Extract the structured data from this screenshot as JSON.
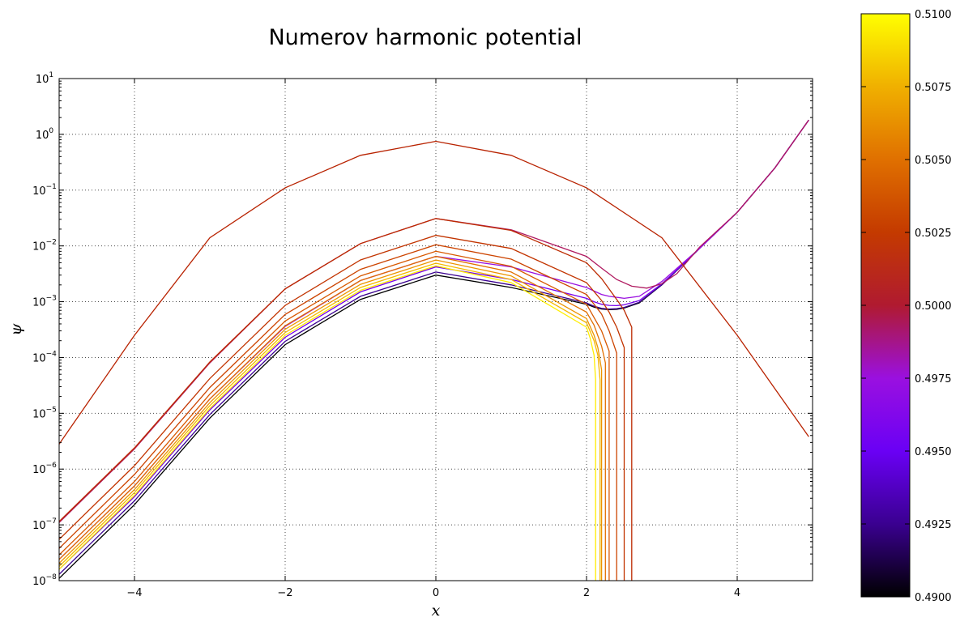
{
  "chart_data": {
    "type": "line",
    "title": "Numerov harmonic potential",
    "xlabel": "x",
    "ylabel": "ψ",
    "xlim": [
      -5,
      5
    ],
    "ylim": [
      1e-08,
      10
    ],
    "yscale": "log",
    "grid": true,
    "x_ticks": [
      -4,
      -2,
      0,
      2,
      4
    ],
    "x_tick_labels": [
      "−4",
      "−2",
      "0",
      "2",
      "4"
    ],
    "y_ticks": [
      {
        "base": "10",
        "exp": "−8"
      },
      {
        "base": "10",
        "exp": "−7"
      },
      {
        "base": "10",
        "exp": "−6"
      },
      {
        "base": "10",
        "exp": "−5"
      },
      {
        "base": "10",
        "exp": "−4"
      },
      {
        "base": "10",
        "exp": "−3"
      },
      {
        "base": "10",
        "exp": "−2"
      },
      {
        "base": "10",
        "exp": "−1"
      },
      {
        "base": "10",
        "exp": "0"
      },
      {
        "base": "10",
        "exp": "1"
      }
    ],
    "colorbar": {
      "range": [
        0.49,
        0.51
      ],
      "ticks": [
        "0.4900",
        "0.4925",
        "0.4950",
        "0.4975",
        "0.5000",
        "0.5025",
        "0.5050",
        "0.5075",
        "0.5100"
      ],
      "colormap": [
        "#000000",
        "#3a0090",
        "#7700ee",
        "#9a10e0",
        "#b01a30",
        "#c43a00",
        "#e07000",
        "#f0b000",
        "#ffff00"
      ]
    },
    "series": [
      {
        "energy": 0.49,
        "color": "#000000",
        "x": [
          -5,
          -4,
          -3,
          -2,
          -1,
          0,
          1,
          2,
          2.1,
          2.2,
          2.3,
          2.4,
          2.5,
          2.7,
          3,
          3.5,
          4,
          4.5,
          4.95
        ],
        "y": [
          1.1e-08,
          2.3e-07,
          8.2e-06,
          0.00017,
          0.0011,
          0.003,
          0.0018,
          0.0009,
          0.0008,
          0.00074,
          0.00072,
          0.00073,
          0.00077,
          0.00095,
          0.002,
          0.009,
          0.04,
          0.25,
          1.8
        ]
      },
      {
        "energy": 0.4925,
        "color": "#3a0090",
        "x": [
          -5,
          -4,
          -3,
          -2,
          -1,
          0,
          1,
          2,
          2.1,
          2.2,
          2.3,
          2.4,
          2.5,
          2.7,
          3,
          3.5,
          4,
          4.5,
          4.95
        ],
        "y": [
          1.3e-08,
          2.7e-07,
          9.5e-06,
          0.000195,
          0.00125,
          0.0034,
          0.002,
          0.00095,
          0.00083,
          0.00076,
          0.00074,
          0.00075,
          0.00079,
          0.00098,
          0.002,
          0.009,
          0.04,
          0.25,
          1.8
        ]
      },
      {
        "energy": 0.495,
        "color": "#7700ee",
        "x": [
          -5,
          -4,
          -3,
          -2,
          -1,
          0,
          1,
          2,
          2.1,
          2.2,
          2.3,
          2.4,
          2.5,
          2.7,
          3,
          3.5,
          4,
          4.5,
          4.95
        ],
        "y": [
          1.6e-08,
          3.2e-07,
          1.15e-05,
          0.00023,
          0.0015,
          0.0042,
          0.0025,
          0.00115,
          0.001,
          0.0009,
          0.00086,
          0.00085,
          0.00088,
          0.00105,
          0.0021,
          0.009,
          0.04,
          0.25,
          1.8
        ]
      },
      {
        "energy": 0.4975,
        "color": "#9a10e0",
        "x": [
          -5,
          -4,
          -3,
          -2,
          -1,
          0,
          1,
          2,
          2.1,
          2.2,
          2.3,
          2.4,
          2.5,
          2.7,
          3,
          3.5,
          4,
          4.5,
          4.95
        ],
        "y": [
          2.4e-08,
          5e-07,
          1.8e-05,
          0.00036,
          0.0024,
          0.0065,
          0.0042,
          0.0018,
          0.00155,
          0.00135,
          0.00125,
          0.0012,
          0.00115,
          0.00125,
          0.0023,
          0.009,
          0.04,
          0.25,
          1.8
        ]
      },
      {
        "energy": 0.4999,
        "color": "#b01a60",
        "x": [
          -5,
          -4,
          -3,
          -2,
          -1,
          0,
          1,
          2,
          2.2,
          2.4,
          2.6,
          2.8,
          3,
          3.2,
          3.5,
          4,
          4.5,
          4.95
        ],
        "y": [
          1.1e-07,
          2.3e-06,
          8e-05,
          0.0017,
          0.011,
          0.031,
          0.0195,
          0.0065,
          0.004,
          0.0025,
          0.0019,
          0.00175,
          0.0021,
          0.0032,
          0.0095,
          0.04,
          0.25,
          1.8
        ]
      },
      {
        "energy": 0.5,
        "color": "#b82200",
        "x": [
          -5,
          -4,
          -3,
          -2,
          -1,
          0,
          1,
          2,
          3,
          4,
          4.95
        ],
        "y": [
          2.8e-06,
          0.00025,
          0.014,
          0.11,
          0.42,
          0.75,
          0.42,
          0.11,
          0.014,
          0.00025,
          3.8e-06
        ]
      },
      {
        "energy": 0.5001,
        "color": "#bc2a00",
        "x": [
          -5,
          -4,
          -3,
          -2,
          -1,
          0,
          1,
          2,
          2.2,
          2.4,
          2.5,
          2.6,
          2.6
        ],
        "y": [
          1.15e-07,
          2.4e-06,
          8.3e-05,
          0.0017,
          0.011,
          0.031,
          0.019,
          0.005,
          0.0026,
          0.0011,
          0.0007,
          0.00035,
          1e-08
        ]
      },
      {
        "energy": 0.5015,
        "color": "#c23400",
        "x": [
          -5,
          -4,
          -3,
          -2,
          -1,
          0,
          1,
          2,
          2.2,
          2.3,
          2.4,
          2.5,
          2.5
        ],
        "y": [
          5.5e-08,
          1.15e-06,
          4.2e-05,
          0.00086,
          0.0056,
          0.0155,
          0.009,
          0.0022,
          0.00105,
          0.00065,
          0.00035,
          0.00015,
          1e-08
        ]
      },
      {
        "energy": 0.503,
        "color": "#cc4400",
        "x": [
          -5,
          -4,
          -3,
          -2,
          -1,
          0,
          1,
          2,
          2.2,
          2.3,
          2.4,
          2.4
        ],
        "y": [
          3.8e-08,
          8e-07,
          2.9e-05,
          0.00059,
          0.0038,
          0.0105,
          0.0058,
          0.00135,
          0.0006,
          0.0003,
          0.00012,
          1e-08
        ]
      },
      {
        "energy": 0.5045,
        "color": "#d85800",
        "x": [
          -5,
          -4,
          -3,
          -2,
          -1,
          0,
          1,
          2,
          2.2,
          2.3,
          2.3
        ],
        "y": [
          2.9e-08,
          6e-07,
          2.2e-05,
          0.00045,
          0.0029,
          0.008,
          0.0043,
          0.0009,
          0.0003,
          0.00013,
          1e-08
        ]
      },
      {
        "energy": 0.506,
        "color": "#e27000",
        "x": [
          -5,
          -4,
          -3,
          -2,
          -1,
          0,
          1,
          2,
          2.1,
          2.2,
          2.25,
          2.25
        ],
        "y": [
          2.4e-08,
          5e-07,
          1.8e-05,
          0.00037,
          0.0024,
          0.0065,
          0.0034,
          0.00065,
          0.00038,
          0.00016,
          8e-05,
          1e-08
        ]
      },
      {
        "energy": 0.5075,
        "color": "#ec9400",
        "x": [
          -5,
          -4,
          -3,
          -2,
          -1,
          0,
          1,
          2,
          2.1,
          2.15,
          2.2,
          2.2
        ],
        "y": [
          2.05e-08,
          4.3e-07,
          1.55e-05,
          0.00032,
          0.00205,
          0.0056,
          0.0029,
          0.0005,
          0.00025,
          0.00015,
          6e-05,
          1e-08
        ]
      },
      {
        "energy": 0.5088,
        "color": "#f5b800",
        "x": [
          -5,
          -4,
          -3,
          -2,
          -1,
          0,
          1,
          2,
          2.1,
          2.15,
          2.18,
          2.18
        ],
        "y": [
          1.8e-08,
          3.8e-07,
          1.37e-05,
          0.00028,
          0.0018,
          0.0049,
          0.0025,
          0.00042,
          0.0002,
          0.00011,
          4e-05,
          1e-08
        ]
      },
      {
        "energy": 0.51,
        "color": "#ffee00",
        "x": [
          -5,
          -4,
          -3,
          -2,
          -1,
          0,
          1,
          2,
          2.05,
          2.1,
          2.12,
          2.12
        ],
        "y": [
          1.6e-08,
          3.4e-07,
          1.22e-05,
          0.00025,
          0.0016,
          0.0044,
          0.0022,
          0.00035,
          0.00022,
          0.00011,
          4e-05,
          1e-08
        ]
      }
    ]
  }
}
